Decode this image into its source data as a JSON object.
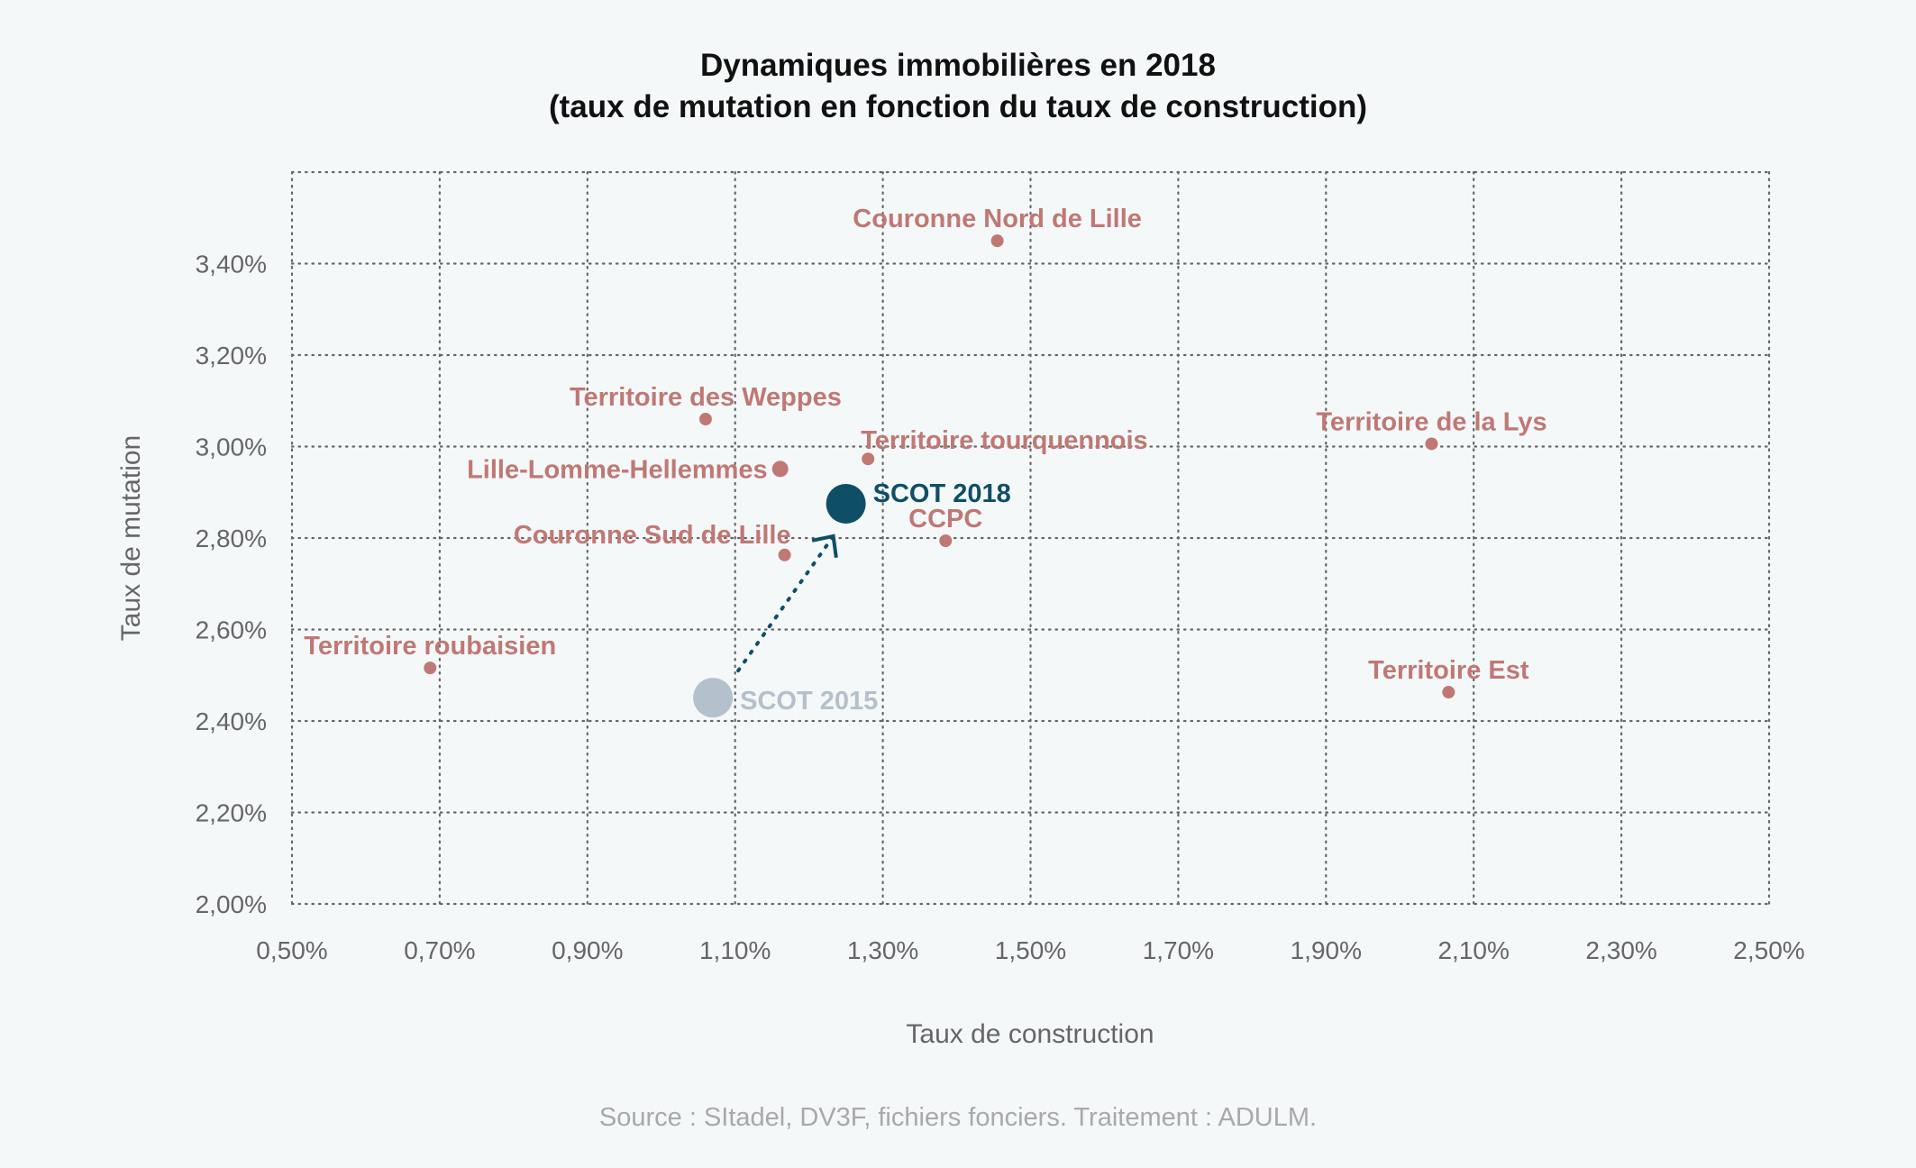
{
  "chart_data": {
    "type": "scatter",
    "title": [
      "Dynamiques immobilières en 2018",
      "(taux de mutation en fonction du taux de construction)"
    ],
    "xlabel": "Taux de construction",
    "ylabel": "Taux de mutation",
    "xlim": [
      0.5,
      2.5
    ],
    "ylim": [
      2.0,
      3.6
    ],
    "grid": true,
    "x_ticks": [
      0.5,
      0.7,
      0.9,
      1.1,
      1.3,
      1.5,
      1.7,
      1.9,
      2.1,
      2.3,
      2.5
    ],
    "x_tick_labels": [
      "0,50%",
      "0,70%",
      "0,90%",
      "1,10%",
      "1,30%",
      "1,50%",
      "1,70%",
      "1,90%",
      "2,10%",
      "2,30%",
      "2,50%"
    ],
    "y_ticks": [
      2.0,
      2.2,
      2.4,
      2.6,
      2.8,
      3.0,
      3.2,
      3.4
    ],
    "y_tick_labels": [
      "2,00%",
      "2,20%",
      "2,40%",
      "2,60%",
      "2,80%",
      "3,00%",
      "3,20%",
      "3,40%"
    ],
    "colors": {
      "territory": "#c07874",
      "scot_2018": "#0f4f66",
      "scot_2015": "#b4c0cc",
      "grid": "#666666"
    },
    "points": [
      {
        "name": "Couronne Nord de Lille",
        "x": 1.455,
        "y": 3.45,
        "group": "territory",
        "label_pos": "above"
      },
      {
        "name": "Territoire des Weppes",
        "x": 1.06,
        "y": 3.06,
        "group": "territory",
        "label_pos": "above"
      },
      {
        "name": "Territoire tourquennois",
        "x": 1.28,
        "y": 2.973,
        "group": "territory",
        "label_pos": "above-right"
      },
      {
        "name": "Territoire de la Lys",
        "x": 2.043,
        "y": 3.006,
        "group": "territory",
        "label_pos": "above"
      },
      {
        "name": "Lille-Lomme-Hellemmes",
        "x": 1.161,
        "y": 2.951,
        "group": "territory",
        "label_pos": "left"
      },
      {
        "name": "Couronne Sud de Lille",
        "x": 1.167,
        "y": 2.763,
        "group": "territory",
        "label_pos": "above-left"
      },
      {
        "name": "CCPC",
        "x": 1.385,
        "y": 2.794,
        "group": "territory",
        "label_pos": "above"
      },
      {
        "name": "Territoire roubaisien",
        "x": 0.687,
        "y": 2.516,
        "group": "territory",
        "label_pos": "above"
      },
      {
        "name": "Territoire Est",
        "x": 2.066,
        "y": 2.463,
        "group": "territory",
        "label_pos": "above"
      },
      {
        "name": "SCOT 2018",
        "x": 1.25,
        "y": 2.875,
        "group": "scot_2018",
        "label_pos": "right"
      },
      {
        "name": "SCOT 2015",
        "x": 1.07,
        "y": 2.451,
        "group": "scot_2015",
        "label_pos": "right"
      }
    ],
    "arrow": {
      "from": "SCOT 2015",
      "to": "SCOT 2018",
      "style": "dotted"
    }
  },
  "source": "Source : SItadel, DV3F, fichiers fonciers. Traitement : ADULM."
}
